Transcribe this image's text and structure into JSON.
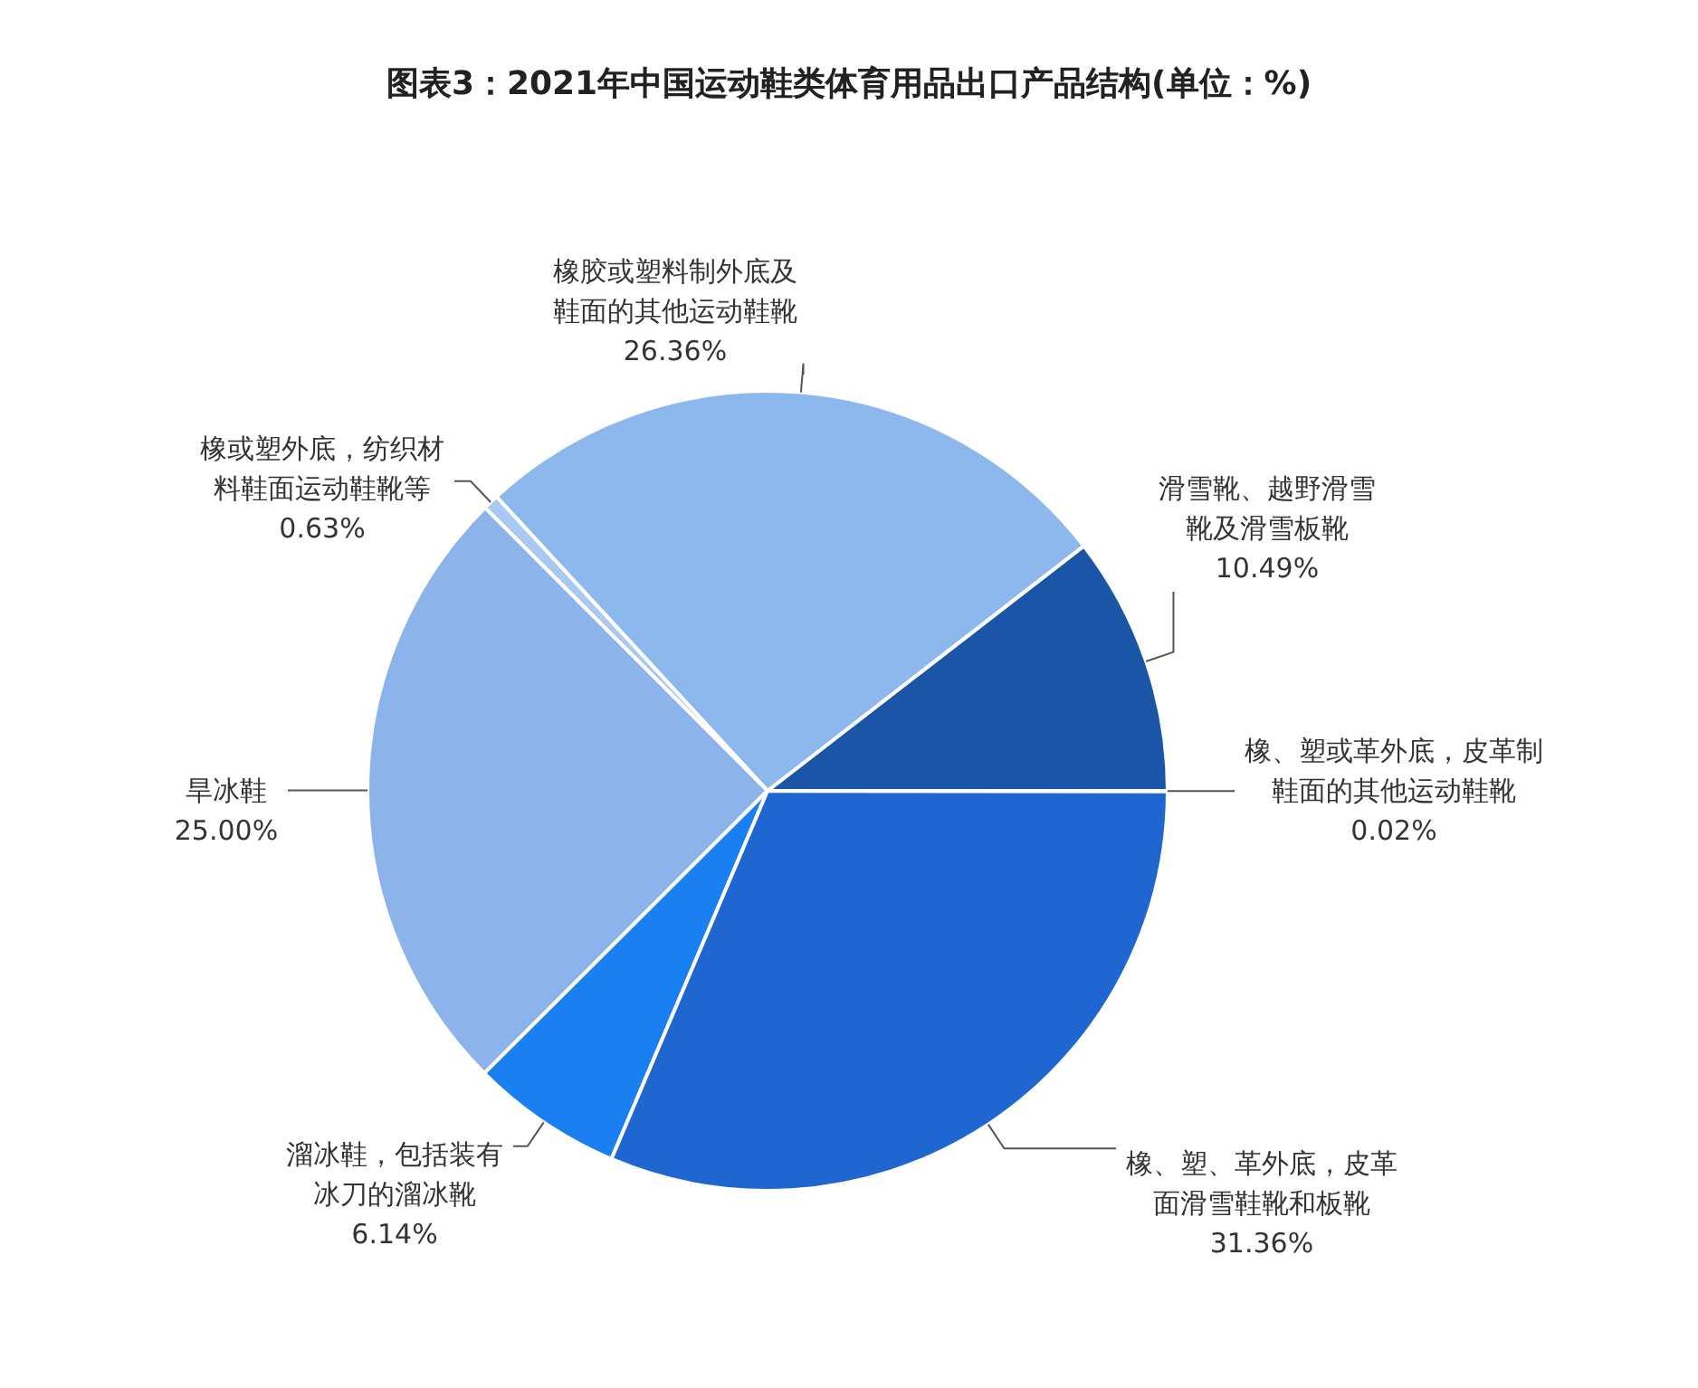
{
  "chart_data": {
    "type": "pie",
    "title": "图表3：2021年中国运动鞋类体育用品出口产品结构(单位：%)",
    "categories": [
      "滑雪靴、越野滑雪靴及滑雪板靴",
      "橡胶或塑料制外底及鞋面的其他运动鞋靴",
      "橡或塑外底，纺织材料鞋面运动鞋靴等",
      "旱冰鞋",
      "溜冰鞋，包括装有冰刀的溜冰靴",
      "橡、塑、革外底，皮革面滑雪鞋靴和板靴",
      "橡、塑或革外底，皮革制鞋面的其他运动鞋靴"
    ],
    "values": [
      10.49,
      26.36,
      0.63,
      25.0,
      6.14,
      31.36,
      0.02
    ],
    "value_labels": [
      "10.49%",
      "26.36%",
      "0.63%",
      "25.00%",
      "6.14%",
      "31.36%",
      "0.02%"
    ],
    "colors": [
      "#1a55a8",
      "#8db8ee",
      "#a9c9f2",
      "#8cb4ea",
      "#1a7ff0",
      "#1f66d0",
      "#2a6fd6"
    ]
  }
}
